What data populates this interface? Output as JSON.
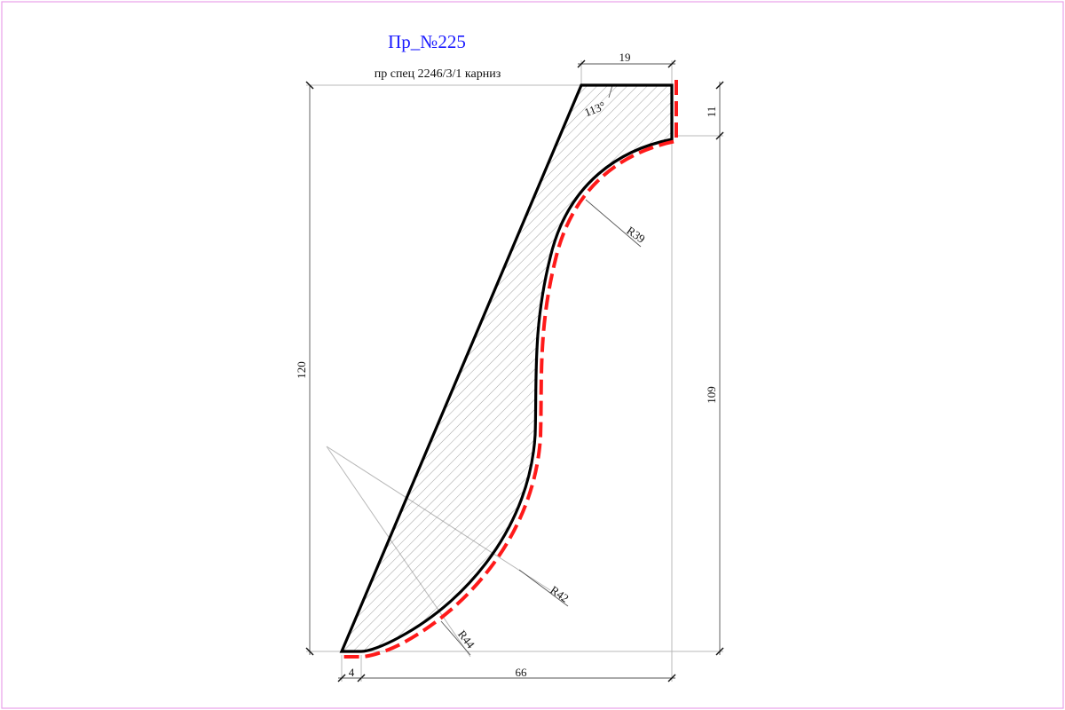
{
  "title": "Пр_№225",
  "subtitle": "пр спец 2246/3/1 карниз",
  "dimensions": {
    "top_width": "19",
    "top_height": "11",
    "right_height": "109",
    "total_height": "120",
    "bottom_small": "4",
    "bottom_width": "66"
  },
  "radii": {
    "r_upper": "R39",
    "r_middle": "R42",
    "r_lower": "R44"
  },
  "angle": "113°",
  "colors": {
    "frame": "#e8a0e8",
    "title": "#1a1aff",
    "outline": "#000000",
    "dashed": "#ff1a1a",
    "hatch": "#888888"
  }
}
